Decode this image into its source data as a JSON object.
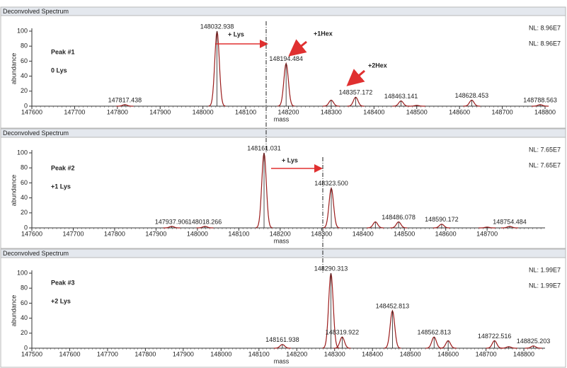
{
  "chart_data": [
    {
      "type": "peaks",
      "title": "Deconvolved Spectrum",
      "xlabel": "mass",
      "ylabel": "abundance",
      "color": "#9b1c1c",
      "x": [
        147817.438,
        148032.938,
        148194.484,
        148300,
        148357.172,
        148463.141,
        148500,
        148628.453,
        148788.563
      ],
      "values": [
        2,
        100,
        57,
        8,
        12,
        7,
        1,
        8,
        2
      ],
      "x_labels": [
        "147817.438",
        "148032.938",
        "148194.484",
        null,
        "148357.172",
        "148463.141",
        null,
        "148628.453",
        "148788.563"
      ],
      "xlim": [
        147600,
        148800
      ],
      "xticks": [
        147600,
        147700,
        147800,
        147900,
        148000,
        148100,
        148200,
        148300,
        148400,
        148500,
        148600,
        148700,
        148800
      ],
      "ylim": [
        0,
        100
      ],
      "yticks": [
        0,
        20,
        40,
        60,
        80,
        100
      ],
      "annotations": [
        "Peak #1",
        "0 Lys",
        "+ Lys",
        "+1Hex",
        "+2Hex"
      ],
      "nl_labels": [
        "NL: 8.96E7",
        "NL: 8.96E7"
      ]
    },
    {
      "type": "peaks",
      "title": "Deconvolved Spectrum",
      "xlabel": "mass",
      "ylabel": "abundance",
      "color": "#9b1c1c",
      "x": [
        147937.906,
        148018.266,
        148161.031,
        148323.5,
        148430,
        148486.078,
        148590.172,
        148700,
        148754.484
      ],
      "values": [
        2,
        2,
        100,
        53,
        8,
        8,
        5,
        1,
        2
      ],
      "x_labels": [
        "147937.906",
        "148018.266",
        "148161.031",
        "148323.500",
        null,
        "148486.078",
        "148590.172",
        null,
        "148754.484"
      ],
      "xlim": [
        147600,
        148840
      ],
      "xticks": [
        147600,
        147700,
        147800,
        147900,
        148000,
        148100,
        148200,
        148300,
        148400,
        148500,
        148600,
        148700
      ],
      "ylim": [
        0,
        100
      ],
      "yticks": [
        0,
        20,
        40,
        60,
        80,
        100
      ],
      "annotations": [
        "Peak #2",
        "+1 Lys",
        "+ Lys"
      ],
      "nl_labels": [
        "NL: 7.65E7",
        "NL: 7.65E7"
      ]
    },
    {
      "type": "peaks",
      "title": "Deconvolved Spectrum",
      "xlabel": "mass",
      "ylabel": "abundance",
      "color": "#9b1c1c",
      "x": [
        148161.938,
        148290.313,
        148319.922,
        148452.813,
        148562.813,
        148600,
        148722.516,
        148760,
        148825.203
      ],
      "values": [
        5,
        100,
        15,
        50,
        15,
        10,
        10,
        2,
        3
      ],
      "x_labels": [
        "148161.938",
        "148290.313",
        "148319.922",
        "148452.813",
        "148562.813",
        null,
        "148722.516",
        null,
        "148825.203"
      ],
      "xlim": [
        147500,
        148856
      ],
      "xticks": [
        147500,
        147600,
        147700,
        147800,
        147900,
        148000,
        148100,
        148200,
        148300,
        148400,
        148500,
        148600,
        148700,
        148800
      ],
      "ylim": [
        0,
        100
      ],
      "yticks": [
        0,
        20,
        40,
        60,
        80,
        100
      ],
      "annotations": [
        "Peak #3",
        "+2 Lys"
      ],
      "nl_labels": [
        "NL: 1.99E7",
        "NL: 1.99E7"
      ]
    }
  ]
}
